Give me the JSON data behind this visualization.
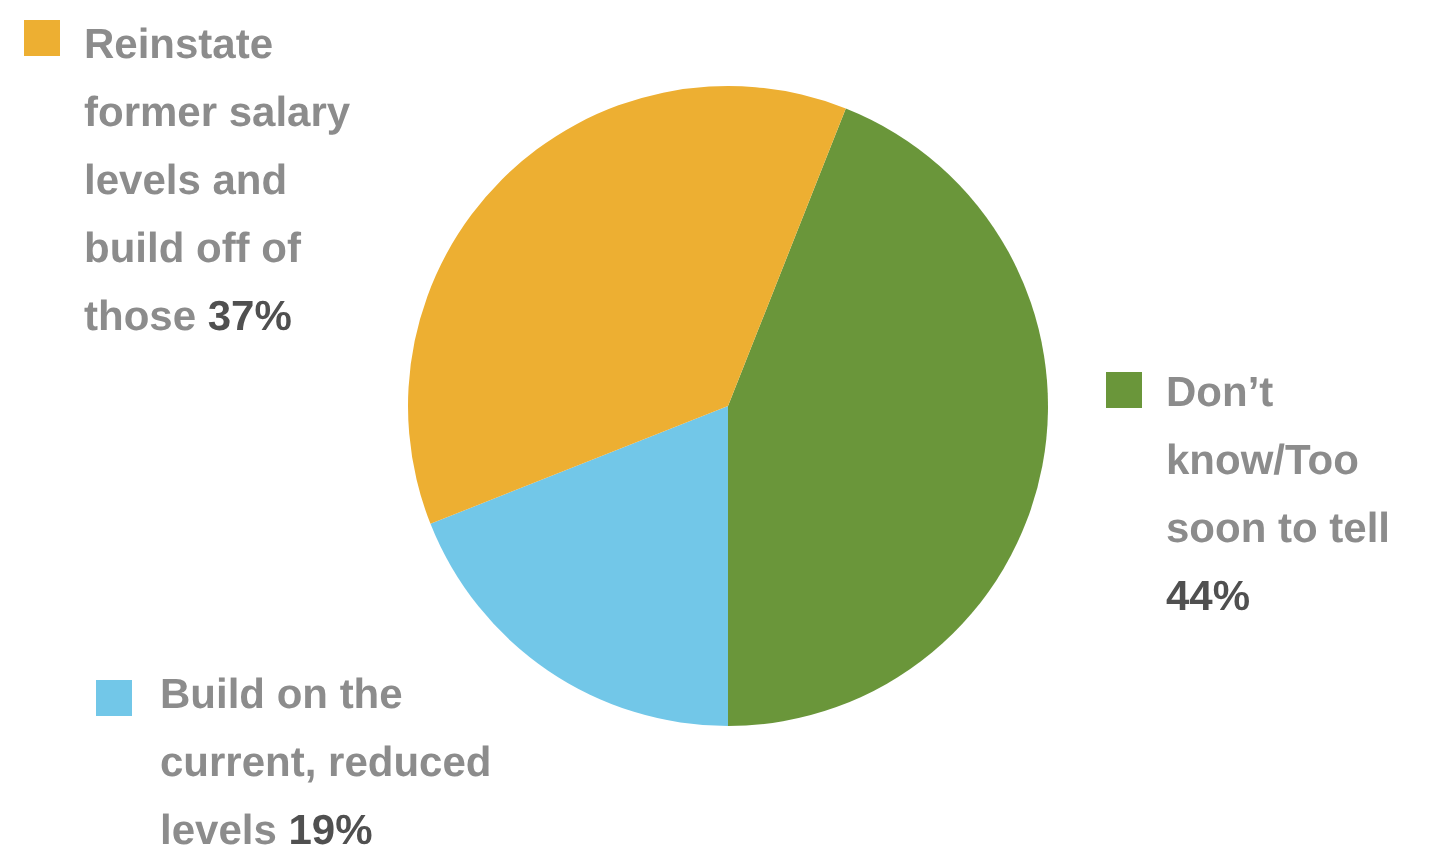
{
  "chart_data": {
    "type": "pie",
    "categories": [
      "Don’t know/Too soon to tell",
      "Build on the current, reduced levels",
      "Reinstate former salary levels and build off of those"
    ],
    "values": [
      44,
      19,
      37
    ],
    "colors": [
      "#6a963a",
      "#72c7e8",
      "#edaf32"
    ],
    "value_labels": [
      "44%",
      "19%",
      "37%"
    ],
    "legend": "bottom left"
  }
}
